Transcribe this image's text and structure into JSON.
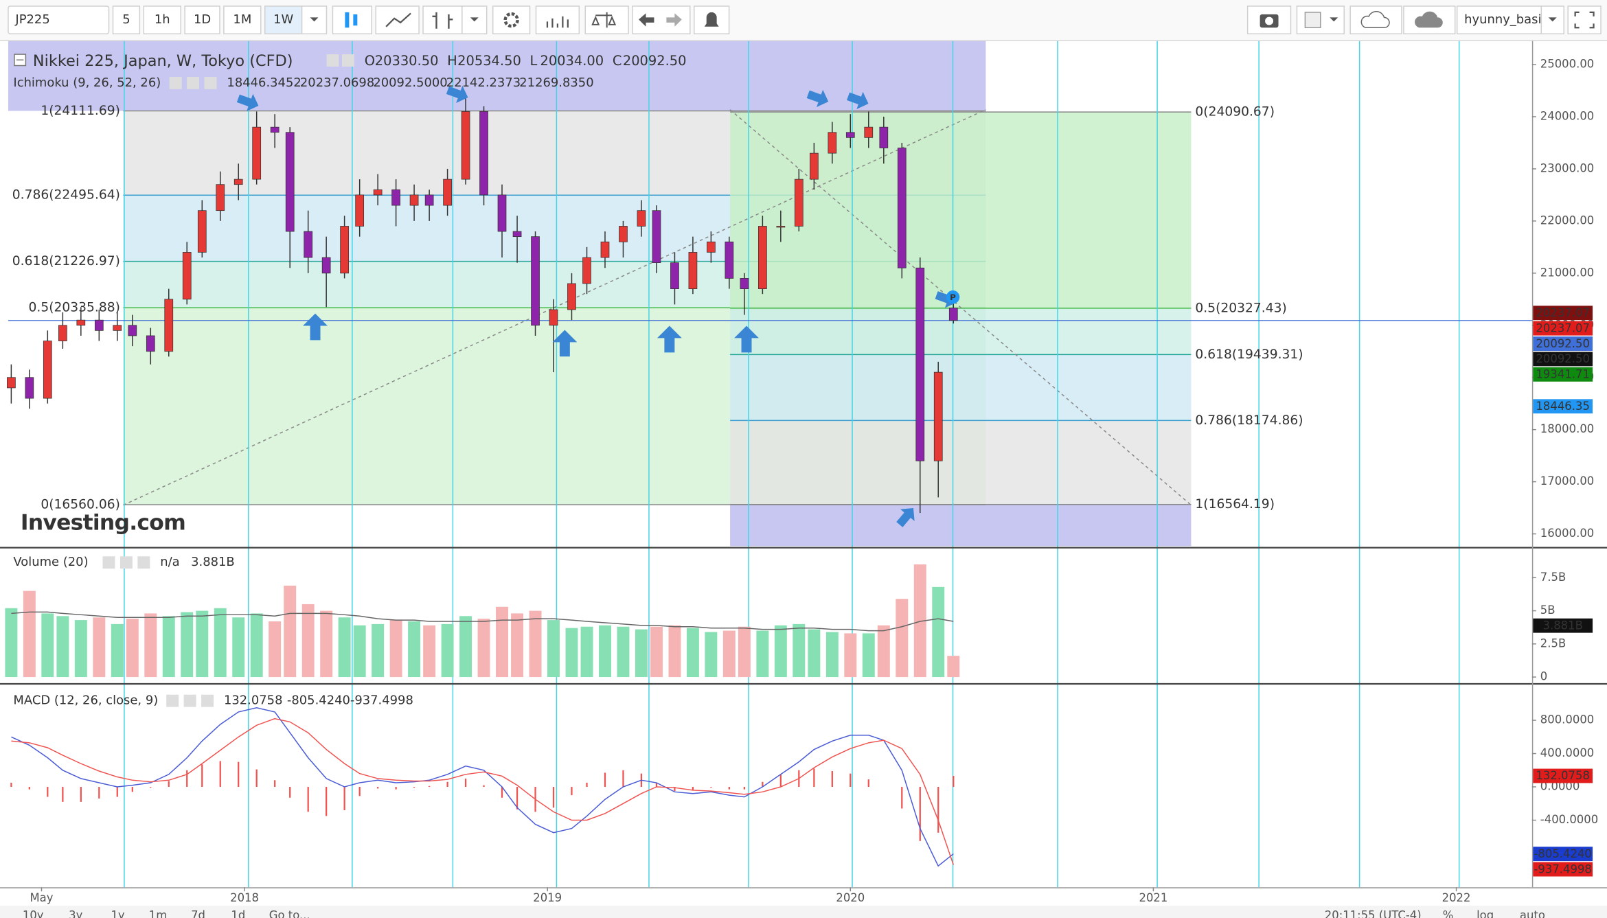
{
  "toolbar": {
    "symbol": "JP225",
    "intervals": [
      "5",
      "1h",
      "1D",
      "1M",
      "1W"
    ],
    "user": "hyunny_basic"
  },
  "bottom_bar": {
    "ranges": [
      "10y",
      "3y",
      "1y",
      "1m",
      "7d",
      "1d"
    ],
    "goto": "Go to...",
    "time": "20:11:55 (UTC-4)",
    "percent": "%",
    "log": "log",
    "auto": "auto"
  },
  "chart_data": [
    {
      "type": "candlestick",
      "title": "Nikkei 225, Japan, W, Tokyo (CFD)",
      "ohlc": [
        {
          "prefix": "O",
          "value": "20330.50"
        },
        {
          "prefix": "H",
          "value": "20534.50"
        },
        {
          "prefix": "L",
          "value": "20034.00"
        },
        {
          "prefix": "C",
          "value": "20092.50"
        }
      ],
      "indicator": {
        "name": "Ichimoku (9, 26, 52, 26)",
        "values": [
          {
            "label": "18446.3452",
            "color": "#2196f3"
          },
          {
            "label": "20237.0698",
            "color": "#b71c1c"
          },
          {
            "label": "20092.5000",
            "color": "#000000"
          },
          {
            "label": "22142.2373",
            "color": "#1b8f1b"
          },
          {
            "label": "21269.8350",
            "color": "#e53935"
          }
        ]
      },
      "watermark": "Investing.com",
      "up_color": "#e53935",
      "down_color": "#8e24aa",
      "wick_color": "#333333",
      "price_line_color": "#3f6fd8",
      "ylim": [
        15766,
        25452
      ],
      "yticks": [
        {
          "value": 16000,
          "label": "16000.00"
        },
        {
          "value": 17000,
          "label": "17000.00"
        },
        {
          "value": 18000,
          "label": "18000.00"
        },
        {
          "value": 19000,
          "label": "19000.00"
        },
        {
          "value": 20000,
          "label": "20000.00"
        },
        {
          "value": 21000,
          "label": "21000.00"
        },
        {
          "value": 22000,
          "label": "22000.00"
        },
        {
          "value": 23000,
          "label": "23000.00"
        },
        {
          "value": 24000,
          "label": "24000.00"
        },
        {
          "value": 25000,
          "label": "25000.00"
        }
      ],
      "x": [
        2017.23,
        2017.29,
        2017.35,
        2017.4,
        2017.46,
        2017.52,
        2017.58,
        2017.63,
        2017.69,
        2017.75,
        2017.81,
        2017.86,
        2017.92,
        2017.98,
        2018.04,
        2018.1,
        2018.15,
        2018.21,
        2018.27,
        2018.33,
        2018.38,
        2018.44,
        2018.5,
        2018.56,
        2018.61,
        2018.67,
        2018.73,
        2018.79,
        2018.85,
        2018.9,
        2018.96,
        2019.02,
        2019.08,
        2019.13,
        2019.19,
        2019.25,
        2019.31,
        2019.36,
        2019.42,
        2019.48,
        2019.54,
        2019.6,
        2019.65,
        2019.71,
        2019.77,
        2019.83,
        2019.88,
        2019.94,
        2020.0,
        2020.06,
        2020.11,
        2020.17,
        2020.23,
        2020.29,
        2020.34
      ],
      "open": [
        18800,
        19000,
        18600,
        19700,
        20000,
        20100,
        19900,
        20000,
        19800,
        19500,
        20500,
        21400,
        22200,
        22700,
        22800,
        23800,
        23700,
        21800,
        21300,
        21000,
        21900,
        22500,
        22600,
        22300,
        22500,
        22300,
        22800,
        24100,
        22500,
        21800,
        21700,
        20000,
        20300,
        20800,
        21300,
        21600,
        21900,
        22200,
        21200,
        20700,
        21400,
        21600,
        20900,
        20700,
        21900,
        21900,
        22800,
        23300,
        23700,
        23600,
        23800,
        23400,
        21100,
        17400,
        20330.5
      ],
      "high": [
        19250,
        19150,
        19900,
        20250,
        20350,
        20300,
        20250,
        20200,
        19950,
        20700,
        21600,
        22400,
        22950,
        23100,
        24100,
        24050,
        23800,
        22200,
        21700,
        22100,
        22800,
        22900,
        22800,
        22700,
        22600,
        23000,
        24450,
        24200,
        22700,
        22100,
        21800,
        20500,
        21000,
        21500,
        21800,
        22000,
        22400,
        22300,
        21400,
        21700,
        21800,
        21700,
        21000,
        22100,
        22200,
        23000,
        23500,
        23900,
        24050,
        24100,
        24000,
        23500,
        21300,
        19300,
        20534.5
      ],
      "low": [
        18500,
        18400,
        18500,
        19550,
        19800,
        19700,
        19700,
        19600,
        19250,
        19400,
        20400,
        21300,
        22000,
        22400,
        22700,
        23400,
        21100,
        21000,
        20350,
        20900,
        21700,
        22300,
        21900,
        22000,
        22000,
        22100,
        22700,
        22300,
        21300,
        21200,
        19800,
        19100,
        20100,
        20600,
        21100,
        21300,
        21700,
        21000,
        20400,
        20600,
        21200,
        20700,
        20200,
        20600,
        21600,
        21800,
        22600,
        23100,
        23400,
        23400,
        23100,
        20900,
        16400,
        16700,
        20034
      ],
      "close": [
        19000,
        18600,
        19700,
        20000,
        20100,
        19900,
        20000,
        19800,
        19500,
        20500,
        21400,
        22200,
        22700,
        22800,
        23800,
        23700,
        21800,
        21300,
        21000,
        21900,
        22500,
        22600,
        22300,
        22500,
        22300,
        22800,
        24100,
        22500,
        21800,
        21700,
        20000,
        20300,
        20800,
        21300,
        21600,
        21900,
        22200,
        21200,
        20700,
        21400,
        21600,
        20900,
        20700,
        21900,
        21900,
        22800,
        23300,
        23700,
        23600,
        23800,
        23400,
        21100,
        17400,
        19100,
        20092.5
      ],
      "fib_left": {
        "band_colors": [
          "#e4e4e4",
          "#d0e8f4",
          "#cdeee6",
          "#d3f3d3"
        ],
        "levels": [
          {
            "value": 24111.69,
            "label": "1(24111.69)",
            "color": "#888888"
          },
          {
            "value": 22495.64,
            "label": "0.786(22495.64)",
            "color": "#3f9fcf"
          },
          {
            "value": 21226.97,
            "label": "0.618(21226.97)",
            "color": "#26a69a"
          },
          {
            "value": 20335.88,
            "label": "0.5(20335.88)",
            "color": "#43b947"
          },
          {
            "value": 16560.06,
            "label": "0(16560.06)",
            "color": "#888888"
          }
        ]
      },
      "fib_right": {
        "band_colors": [
          "#c6efc6",
          "#cdeee6",
          "#d0e8f4",
          "#e4e4e4"
        ],
        "levels": [
          {
            "value": 24090.67,
            "label": "0(24090.67)",
            "color": "#888888"
          },
          {
            "value": 20327.43,
            "label": "0.5(20327.43)",
            "color": "#43b947"
          },
          {
            "value": 19439.31,
            "label": "0.618(19439.31)",
            "color": "#26a69a"
          },
          {
            "value": 18174.86,
            "label": "0.786(18174.86)",
            "color": "#3f9fcf"
          },
          {
            "value": 16564.19,
            "label": "1(16564.19)",
            "color": "#888888"
          }
        ]
      },
      "price_tags": [
        {
          "value": 20237.07,
          "label": "20237.07",
          "color": "#7f1010"
        },
        {
          "value": 20237.07,
          "label": "20237.07",
          "color": "#e21b1b"
        },
        {
          "value": 20092.5,
          "label": "20092.50",
          "color": "#3f6fd8"
        },
        {
          "value": 20092.5,
          "label": "20092.50",
          "color": "#111111"
        },
        {
          "value": 19341.71,
          "label": "19341.71",
          "color": "#0e8a0e"
        },
        {
          "value": 18446.35,
          "label": "18446.35",
          "color": "#2196f3"
        }
      ]
    },
    {
      "type": "bar",
      "title": "Volume (20)",
      "legend_values": [
        {
          "label": "n/a",
          "color": "#e53935"
        },
        {
          "label": "3.881B",
          "color": "#222222"
        }
      ],
      "up_color": "#86e0b4",
      "down_color": "#f6b3b3",
      "ma_color": "#666666",
      "ylim": [
        -0.4,
        9.65
      ],
      "yticks": [
        {
          "value": 7.5,
          "label": "7.5B"
        },
        {
          "value": 5,
          "label": "5B"
        },
        {
          "value": 2.5,
          "label": "2.5B"
        },
        0
      ],
      "values": [
        5.2,
        6.5,
        4.8,
        4.6,
        4.3,
        4.5,
        4.0,
        4.4,
        4.8,
        4.6,
        4.9,
        5.0,
        5.2,
        4.5,
        4.8,
        4.2,
        6.9,
        5.5,
        5.0,
        4.5,
        3.9,
        4.0,
        4.3,
        4.2,
        3.9,
        4.0,
        4.6,
        4.4,
        5.3,
        4.8,
        5.0,
        4.3,
        3.7,
        3.8,
        3.9,
        3.8,
        3.6,
        3.8,
        3.9,
        3.7,
        3.4,
        3.5,
        3.8,
        3.5,
        3.9,
        4.0,
        3.6,
        3.4,
        3.3,
        3.3,
        3.9,
        5.9,
        8.5,
        6.8,
        1.6
      ],
      "ma": [
        4.8,
        4.9,
        4.9,
        4.8,
        4.7,
        4.6,
        4.5,
        4.5,
        4.5,
        4.5,
        4.6,
        4.6,
        4.7,
        4.7,
        4.7,
        4.6,
        4.8,
        4.8,
        4.8,
        4.7,
        4.6,
        4.4,
        4.3,
        4.3,
        4.2,
        4.2,
        4.2,
        4.2,
        4.3,
        4.3,
        4.4,
        4.4,
        4.3,
        4.2,
        4.1,
        4.0,
        3.9,
        3.9,
        3.8,
        3.8,
        3.7,
        3.7,
        3.7,
        3.6,
        3.6,
        3.7,
        3.7,
        3.6,
        3.6,
        3.5,
        3.5,
        3.8,
        4.2,
        4.4,
        4.2
      ],
      "tag": {
        "value": 3.881,
        "label": "3.881B",
        "color": "#111111"
      }
    },
    {
      "type": "macd",
      "title": "MACD (12, 26, close, 9)",
      "legend_values": [
        {
          "label": "132.0758",
          "color": "#e53935"
        },
        {
          "label": "-805.4240",
          "color": "#1a3ccf"
        },
        {
          "label": "-937.4998",
          "color": "#e53935"
        }
      ],
      "macd_color": "#4a5bd6",
      "signal_color": "#ef5350",
      "hist_color": "#ef5350",
      "ylim": [
        -1206,
        1231
      ],
      "yticks": [
        {
          "value": 800,
          "label": "800.0000"
        },
        {
          "value": 400,
          "label": "400.0000"
        },
        {
          "value": 0,
          "label": "0.0000"
        },
        {
          "value": -400,
          "label": "-400.0000"
        }
      ],
      "macd": [
        600,
        500,
        350,
        200,
        100,
        50,
        0,
        20,
        50,
        150,
        350,
        550,
        750,
        900,
        950,
        900,
        650,
        350,
        100,
        0,
        50,
        80,
        50,
        60,
        80,
        150,
        250,
        200,
        0,
        -250,
        -450,
        -550,
        -500,
        -350,
        -150,
        0,
        80,
        50,
        -60,
        -80,
        -60,
        -100,
        -120,
        0,
        150,
        300,
        450,
        550,
        620,
        620,
        560,
        200,
        -500,
        -950,
        -805
      ],
      "signal": [
        550,
        530,
        470,
        380,
        280,
        190,
        120,
        80,
        60,
        80,
        150,
        280,
        440,
        600,
        740,
        820,
        780,
        650,
        450,
        280,
        160,
        100,
        80,
        70,
        70,
        90,
        150,
        180,
        130,
        20,
        -150,
        -300,
        -400,
        -400,
        -320,
        -200,
        -80,
        0,
        -10,
        -40,
        -50,
        -70,
        -90,
        -60,
        0,
        100,
        230,
        360,
        460,
        530,
        560,
        460,
        150,
        -400,
        -937
      ],
      "histogram": [
        50,
        -30,
        -120,
        -180,
        -180,
        -140,
        -120,
        -60,
        -10,
        70,
        200,
        270,
        310,
        300,
        210,
        80,
        -130,
        -300,
        -350,
        -280,
        -110,
        -20,
        -30,
        -10,
        10,
        60,
        100,
        20,
        -130,
        -270,
        -300,
        -250,
        -100,
        50,
        170,
        200,
        160,
        50,
        -50,
        -40,
        -10,
        -30,
        -30,
        60,
        150,
        200,
        220,
        190,
        160,
        90,
        0,
        -260,
        -650,
        -550,
        132
      ],
      "tags": [
        {
          "value": 132.0758,
          "label": "132.0758",
          "color": "#e21b1b"
        },
        {
          "value": -805.424,
          "label": "-805.4240",
          "color": "#1a3ccf"
        },
        {
          "value": -937.4998,
          "label": "-937.4998",
          "color": "#e21b1b"
        }
      ],
      "xlim": [
        2017.22,
        2022.25
      ],
      "xticks": [
        {
          "value": 2017.33,
          "label": "May"
        },
        2018,
        2019,
        2020,
        2021,
        2022
      ]
    }
  ]
}
